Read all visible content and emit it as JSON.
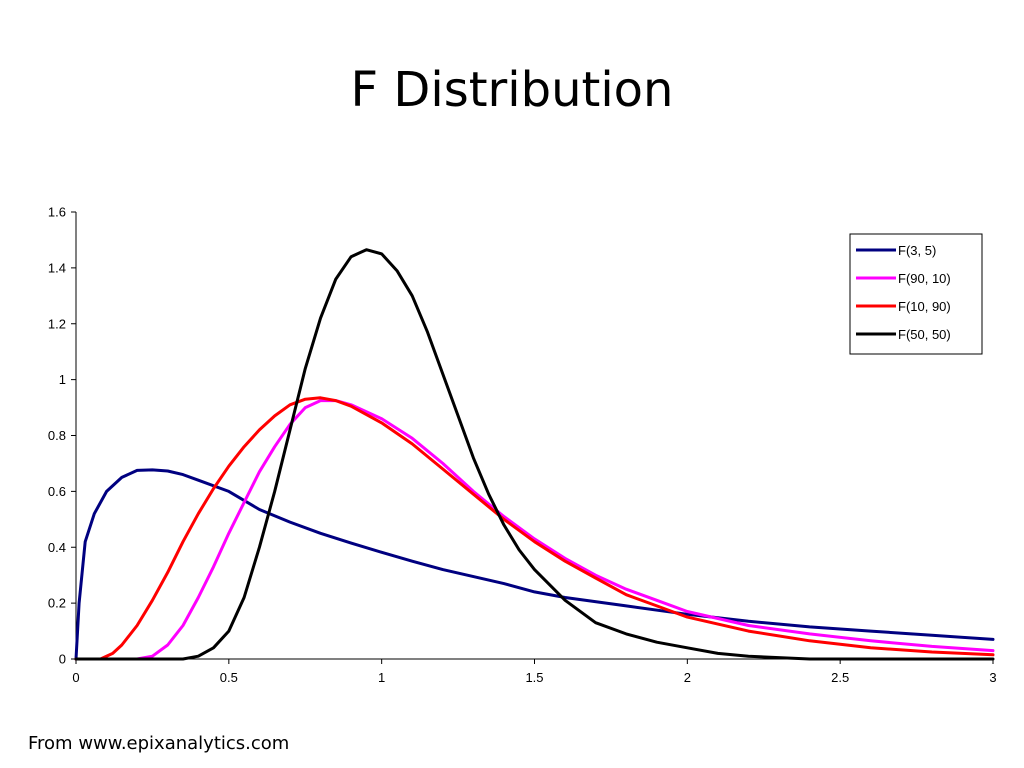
{
  "slide": {
    "title": "F Distribution",
    "source": "From www.epixanalytics.com"
  },
  "chart_data": {
    "type": "line",
    "title": "",
    "xlabel": "",
    "ylabel": "",
    "xlim": [
      0,
      3
    ],
    "ylim": [
      0,
      1.6
    ],
    "xticks": [
      0,
      0.5,
      1,
      1.5,
      2,
      2.5,
      3
    ],
    "xtick_labels": [
      "0",
      "0.5",
      "1",
      "1.5",
      "2",
      "2.5",
      "3"
    ],
    "yticks": [
      0,
      0.2,
      0.4,
      0.6,
      0.8,
      1,
      1.2,
      1.4,
      1.6
    ],
    "ytick_labels": [
      "0",
      "0.2",
      "0.4",
      "0.6",
      "0.8",
      "1",
      "1.2",
      "1.4",
      "1.6"
    ],
    "grid": false,
    "legend_position": "top-right",
    "series": [
      {
        "name": "F(3, 5)",
        "color": "#000080",
        "points": [
          [
            0,
            0
          ],
          [
            0.01,
            0.2
          ],
          [
            0.03,
            0.42
          ],
          [
            0.06,
            0.52
          ],
          [
            0.1,
            0.6
          ],
          [
            0.15,
            0.65
          ],
          [
            0.2,
            0.675
          ],
          [
            0.25,
            0.677
          ],
          [
            0.3,
            0.673
          ],
          [
            0.35,
            0.66
          ],
          [
            0.4,
            0.64
          ],
          [
            0.5,
            0.6
          ],
          [
            0.6,
            0.535
          ],
          [
            0.7,
            0.49
          ],
          [
            0.8,
            0.45
          ],
          [
            0.9,
            0.415
          ],
          [
            1,
            0.382
          ],
          [
            1.1,
            0.35
          ],
          [
            1.2,
            0.32
          ],
          [
            1.3,
            0.295
          ],
          [
            1.4,
            0.27
          ],
          [
            1.5,
            0.24
          ],
          [
            1.6,
            0.22
          ],
          [
            1.8,
            0.19
          ],
          [
            2,
            0.16
          ],
          [
            2.2,
            0.135
          ],
          [
            2.4,
            0.115
          ],
          [
            2.6,
            0.1
          ],
          [
            2.8,
            0.085
          ],
          [
            3,
            0.07
          ]
        ]
      },
      {
        "name": "F(90, 10)",
        "color": "#ff00ff",
        "points": [
          [
            0,
            0
          ],
          [
            0.2,
            0.0
          ],
          [
            0.25,
            0.01
          ],
          [
            0.3,
            0.05
          ],
          [
            0.35,
            0.12
          ],
          [
            0.4,
            0.22
          ],
          [
            0.45,
            0.33
          ],
          [
            0.5,
            0.45
          ],
          [
            0.55,
            0.56
          ],
          [
            0.6,
            0.67
          ],
          [
            0.65,
            0.76
          ],
          [
            0.7,
            0.84
          ],
          [
            0.75,
            0.9
          ],
          [
            0.8,
            0.925
          ],
          [
            0.85,
            0.925
          ],
          [
            0.9,
            0.91
          ],
          [
            1,
            0.86
          ],
          [
            1.1,
            0.79
          ],
          [
            1.2,
            0.7
          ],
          [
            1.3,
            0.6
          ],
          [
            1.4,
            0.51
          ],
          [
            1.5,
            0.43
          ],
          [
            1.6,
            0.36
          ],
          [
            1.7,
            0.3
          ],
          [
            1.8,
            0.25
          ],
          [
            1.9,
            0.21
          ],
          [
            2,
            0.17
          ],
          [
            2.2,
            0.12
          ],
          [
            2.4,
            0.09
          ],
          [
            2.6,
            0.065
          ],
          [
            2.8,
            0.045
          ],
          [
            3,
            0.03
          ]
        ]
      },
      {
        "name": "F(10, 90)",
        "color": "#ff0000",
        "points": [
          [
            0,
            0
          ],
          [
            0.08,
            0.0
          ],
          [
            0.12,
            0.02
          ],
          [
            0.15,
            0.05
          ],
          [
            0.2,
            0.12
          ],
          [
            0.25,
            0.21
          ],
          [
            0.3,
            0.31
          ],
          [
            0.35,
            0.42
          ],
          [
            0.4,
            0.52
          ],
          [
            0.45,
            0.61
          ],
          [
            0.5,
            0.69
          ],
          [
            0.55,
            0.76
          ],
          [
            0.6,
            0.82
          ],
          [
            0.65,
            0.87
          ],
          [
            0.7,
            0.91
          ],
          [
            0.75,
            0.93
          ],
          [
            0.8,
            0.935
          ],
          [
            0.85,
            0.925
          ],
          [
            0.9,
            0.905
          ],
          [
            1,
            0.845
          ],
          [
            1.1,
            0.77
          ],
          [
            1.2,
            0.68
          ],
          [
            1.3,
            0.59
          ],
          [
            1.4,
            0.5
          ],
          [
            1.5,
            0.42
          ],
          [
            1.6,
            0.35
          ],
          [
            1.7,
            0.29
          ],
          [
            1.8,
            0.23
          ],
          [
            1.9,
            0.19
          ],
          [
            2,
            0.15
          ],
          [
            2.2,
            0.1
          ],
          [
            2.4,
            0.065
          ],
          [
            2.6,
            0.04
          ],
          [
            2.8,
            0.025
          ],
          [
            3,
            0.015
          ]
        ]
      },
      {
        "name": "F(50, 50)",
        "color": "#000000",
        "points": [
          [
            0,
            0
          ],
          [
            0.35,
            0.0
          ],
          [
            0.4,
            0.01
          ],
          [
            0.45,
            0.04
          ],
          [
            0.5,
            0.1
          ],
          [
            0.55,
            0.22
          ],
          [
            0.6,
            0.4
          ],
          [
            0.65,
            0.6
          ],
          [
            0.7,
            0.82
          ],
          [
            0.75,
            1.04
          ],
          [
            0.8,
            1.22
          ],
          [
            0.85,
            1.36
          ],
          [
            0.9,
            1.44
          ],
          [
            0.95,
            1.465
          ],
          [
            1,
            1.45
          ],
          [
            1.05,
            1.39
          ],
          [
            1.1,
            1.3
          ],
          [
            1.15,
            1.17
          ],
          [
            1.2,
            1.02
          ],
          [
            1.25,
            0.87
          ],
          [
            1.3,
            0.72
          ],
          [
            1.35,
            0.59
          ],
          [
            1.4,
            0.48
          ],
          [
            1.45,
            0.39
          ],
          [
            1.5,
            0.32
          ],
          [
            1.6,
            0.21
          ],
          [
            1.7,
            0.13
          ],
          [
            1.8,
            0.09
          ],
          [
            1.9,
            0.06
          ],
          [
            2,
            0.04
          ],
          [
            2.1,
            0.02
          ],
          [
            2.2,
            0.01
          ],
          [
            2.4,
            0.0
          ],
          [
            3,
            0.0
          ]
        ]
      }
    ]
  }
}
